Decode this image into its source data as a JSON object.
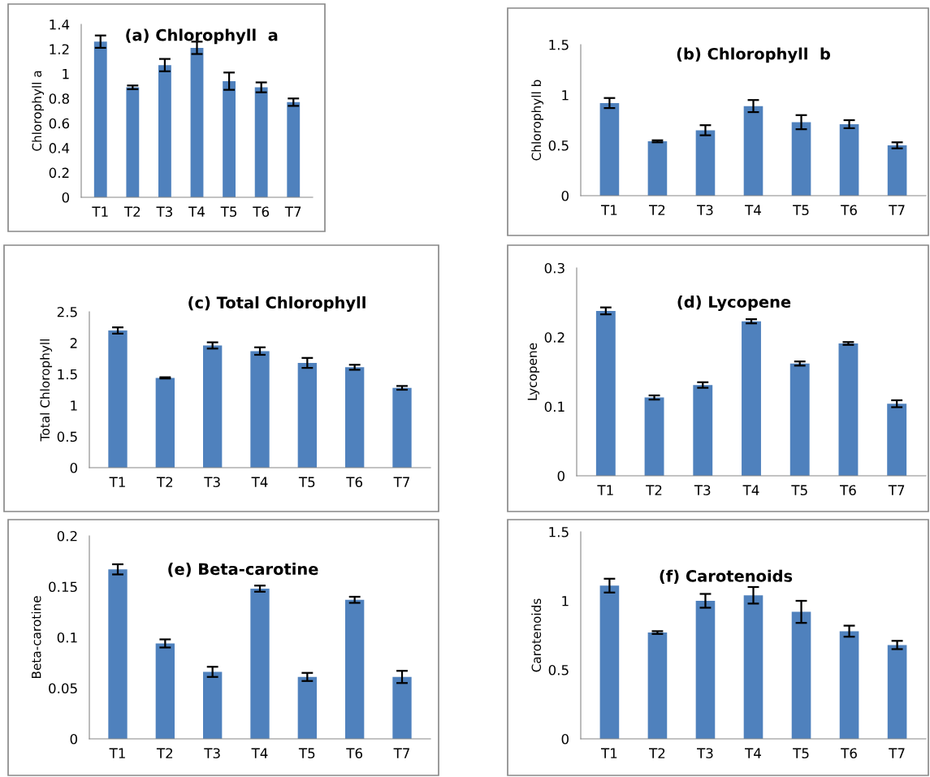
{
  "chart_data": [
    {
      "type": "bar",
      "title": "(a) Chlorophyll  a",
      "ylabel": "Chlorophyll a",
      "categories": [
        "T1",
        "T2",
        "T3",
        "T4",
        "T5",
        "T6",
        "T7"
      ],
      "values": [
        1.26,
        0.89,
        1.07,
        1.21,
        0.94,
        0.89,
        0.77
      ],
      "errors": [
        0.05,
        0.015,
        0.05,
        0.05,
        0.07,
        0.04,
        0.03
      ],
      "color": "#4f81bd",
      "ylim": [
        0,
        1.4
      ],
      "yticks": [
        0,
        0.2,
        0.4,
        0.6,
        0.8,
        1,
        1.2,
        1.4
      ],
      "grid": false
    },
    {
      "type": "bar",
      "title": "(b) Chlorophyll  b",
      "ylabel": "Chlorophyll b",
      "categories": [
        "T1",
        "T2",
        "T3",
        "T4",
        "T5",
        "T6",
        "T7"
      ],
      "values": [
        0.92,
        0.54,
        0.65,
        0.89,
        0.73,
        0.71,
        0.5
      ],
      "errors": [
        0.05,
        0.01,
        0.05,
        0.06,
        0.07,
        0.04,
        0.03
      ],
      "color": "#4f81bd",
      "ylim": [
        0,
        1.5
      ],
      "yticks": [
        0,
        0.5,
        1,
        1.5
      ],
      "grid": false
    },
    {
      "type": "bar",
      "title": "(c) Total Chlorophyll",
      "ylabel": "Total Chlorophyll",
      "categories": [
        "T1",
        "T2",
        "T3",
        "T4",
        "T5",
        "T6",
        "T7"
      ],
      "values": [
        2.2,
        1.44,
        1.96,
        1.87,
        1.68,
        1.61,
        1.28
      ],
      "errors": [
        0.05,
        0.01,
        0.05,
        0.06,
        0.08,
        0.04,
        0.03
      ],
      "color": "#4f81bd",
      "ylim": [
        0,
        2.5
      ],
      "yticks": [
        0,
        0.5,
        1,
        1.5,
        2,
        2.5
      ],
      "grid": false
    },
    {
      "type": "bar",
      "title": "(d) Lycopene",
      "ylabel": "Lycopene",
      "categories": [
        "T1",
        "T2",
        "T3",
        "T4",
        "T5",
        "T6",
        "T7"
      ],
      "values": [
        0.238,
        0.113,
        0.131,
        0.223,
        0.162,
        0.191,
        0.104
      ],
      "errors": [
        0.005,
        0.003,
        0.004,
        0.003,
        0.003,
        0.002,
        0.005
      ],
      "color": "#4f81bd",
      "ylim": [
        0,
        0.3
      ],
      "yticks": [
        0,
        0.1,
        0.2,
        0.3
      ],
      "grid": false
    },
    {
      "type": "bar",
      "title": "(e) Beta-carotine",
      "ylabel": "Beta-carotine",
      "categories": [
        "T1",
        "T2",
        "T3",
        "T4",
        "T5",
        "T6",
        "T7"
      ],
      "values": [
        0.167,
        0.094,
        0.066,
        0.148,
        0.061,
        0.137,
        0.061
      ],
      "errors": [
        0.005,
        0.004,
        0.005,
        0.003,
        0.004,
        0.003,
        0.006
      ],
      "color": "#4f81bd",
      "ylim": [
        0,
        0.2
      ],
      "yticks": [
        0,
        0.05,
        0.1,
        0.15,
        0.2
      ],
      "grid": false
    },
    {
      "type": "bar",
      "title": "(f) Carotenoids",
      "ylabel": "Carotenoids",
      "categories": [
        "T1",
        "T2",
        "T3",
        "T4",
        "T5",
        "T6",
        "T7"
      ],
      "values": [
        1.11,
        0.77,
        1.0,
        1.04,
        0.92,
        0.78,
        0.68
      ],
      "errors": [
        0.05,
        0.01,
        0.05,
        0.06,
        0.08,
        0.04,
        0.03
      ],
      "color": "#4f81bd",
      "ylim": [
        0,
        1.5
      ],
      "yticks": [
        0,
        0.5,
        1,
        1.5
      ],
      "grid": false
    }
  ]
}
